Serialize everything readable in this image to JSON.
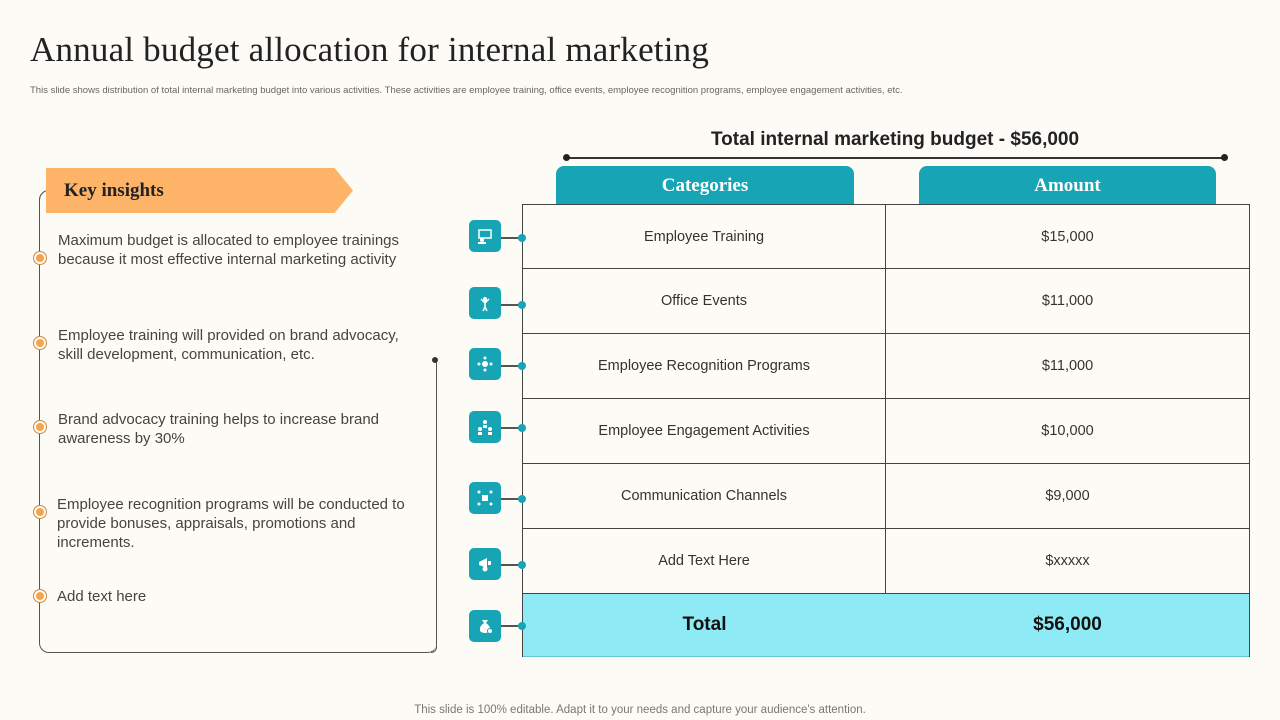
{
  "title": "Annual budget allocation  for internal marketing",
  "subtitle": "This slide shows distribution of total internal marketing  budget into various activities. These activities are employee training,  office events, employee recognition programs, employee  engagement activities, etc.",
  "insights": {
    "heading": "Key insights",
    "items": [
      "Maximum budget is allocated to employee trainings because it most effective internal marketing activity",
      "Employee training will provided on brand advocacy, skill development,  communication, etc.",
      "Brand advocacy training helps to increase brand awareness by 30%",
      "Employee recognition programs will be conducted to provide bonuses,  appraisals, promotions and increments.",
      "Add text here"
    ]
  },
  "budget": {
    "title": "Total internal marketing budget - $56,000",
    "headers": {
      "category": "Categories",
      "amount": "Amount"
    },
    "rows": [
      {
        "category": "Employee Training",
        "amount": "$15,000",
        "icon": "training-icon"
      },
      {
        "category": "Office Events",
        "amount": "$11,000",
        "icon": "celebration-icon"
      },
      {
        "category": "Employee Recognition Programs",
        "amount": "$11,000",
        "icon": "recognition-icon"
      },
      {
        "category": "Employee Engagement Activities",
        "amount": "$10,000",
        "icon": "team-icon"
      },
      {
        "category": "Communication Channels",
        "amount": "$9,000",
        "icon": "network-icon"
      },
      {
        "category": "Add Text Here",
        "amount": "$xxxxx",
        "icon": "megaphone-icon"
      }
    ],
    "total": {
      "label": "Total",
      "amount": "$56,000",
      "icon": "money-bag-icon"
    }
  },
  "footer": "This slide is 100% editable. Adapt it to your needs and capture your audience's attention.",
  "colors": {
    "accent": "#17a5b5",
    "banner": "#fdb368",
    "total_row": "#8eeaf5"
  }
}
